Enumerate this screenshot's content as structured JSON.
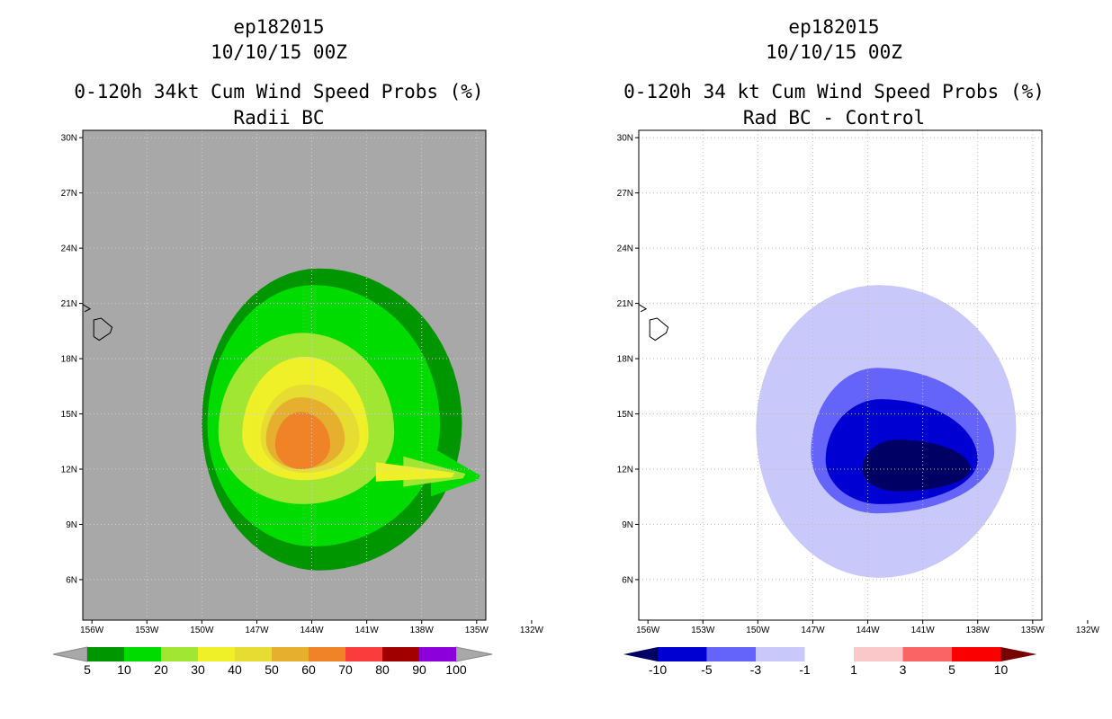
{
  "chart_data": [
    {
      "type": "heatmap",
      "storm_id": "ep182015",
      "date": "10/10/15 00Z",
      "title": "0-120h 34kt Cum Wind Speed Probs (%)",
      "subtitle": "Radii BC",
      "background": "#a8a8a8",
      "lat_ticks": [
        "30N",
        "27N",
        "24N",
        "21N",
        "18N",
        "15N",
        "12N",
        "9N",
        "6N"
      ],
      "lat_values": [
        30,
        27,
        24,
        21,
        18,
        15,
        12,
        9,
        6
      ],
      "lon_ticks": [
        "156W",
        "153W",
        "150W",
        "147W",
        "144W",
        "141W",
        "138W",
        "135W",
        "132W"
      ],
      "lon_values": [
        156,
        153,
        150,
        147,
        144,
        141,
        138,
        135,
        132
      ],
      "xlim_lon_w": [
        156.5,
        134.5
      ],
      "ylim_lat_n": [
        3.8,
        30.4
      ],
      "colorbar_labels": [
        "5",
        "10",
        "20",
        "30",
        "40",
        "50",
        "60",
        "70",
        "80",
        "90",
        "100"
      ],
      "colorbar_colors": [
        "#009600",
        "#00dc00",
        "#a0e632",
        "#f0f028",
        "#e6dc32",
        "#e6af2d",
        "#f08228",
        "#fa3c3c",
        "#a00000",
        "#8c00dc"
      ],
      "levels": [
        {
          "value": "5",
          "color": "#009600",
          "center": [
            143.6,
            14.5
          ],
          "r_w": 6.4,
          "r_e": 7.8,
          "r_n": 8.4,
          "r_s": 8.0
        },
        {
          "value": "10",
          "color": "#00dc00",
          "center": [
            143.9,
            14.4
          ],
          "r_w": 5.8,
          "r_e": 6.9,
          "r_n": 7.6,
          "r_s": 6.6
        },
        {
          "value": "20",
          "color": "#a0e632",
          "center": [
            144.5,
            14.0
          ],
          "r_w": 4.6,
          "r_e": 5.0,
          "r_n": 5.4,
          "r_s": 3.9
        },
        {
          "value": "30",
          "color": "#f0f028",
          "center": [
            144.4,
            13.8
          ],
          "r_w": 3.4,
          "r_e": 3.5,
          "r_n": 4.3,
          "r_s": 2.4
        },
        {
          "value": "40",
          "color": "#e6dc32",
          "center": [
            144.4,
            13.7
          ],
          "r_w": 2.4,
          "r_e": 3.0,
          "r_n": 2.9,
          "r_s": 1.9
        },
        {
          "value": "50",
          "color": "#e6af2d",
          "center": [
            144.6,
            13.6
          ],
          "r_w": 1.9,
          "r_e": 2.4,
          "r_n": 2.3,
          "r_s": 1.6
        },
        {
          "value": "60",
          "color": "#f08228",
          "center": [
            144.6,
            13.3
          ],
          "r_w": 1.4,
          "r_e": 1.6,
          "r_n": 1.8,
          "r_s": 1.3
        }
      ]
    },
    {
      "type": "heatmap",
      "storm_id": "ep182015",
      "date": "10/10/15 00Z",
      "title": "0-120h 34 kt Cum Wind Speed Probs (%)",
      "subtitle": "Rad BC - Control",
      "background": "#ffffff",
      "grid": true,
      "lat_ticks": [
        "30N",
        "27N",
        "24N",
        "21N",
        "18N",
        "15N",
        "12N",
        "9N",
        "6N"
      ],
      "lat_values": [
        30,
        27,
        24,
        21,
        18,
        15,
        12,
        9,
        6
      ],
      "lon_ticks": [
        "156W",
        "153W",
        "150W",
        "147W",
        "144W",
        "141W",
        "138W",
        "135W",
        "132W"
      ],
      "lon_values": [
        156,
        153,
        150,
        147,
        144,
        141,
        138,
        135,
        132
      ],
      "xlim_lon_w": [
        156.5,
        134.5
      ],
      "ylim_lat_n": [
        3.8,
        30.4
      ],
      "colorbar_labels": [
        "-10",
        "-5",
        "-3",
        "-1",
        "1",
        "3",
        "5",
        "10"
      ],
      "colorbar_colors": [
        "#0000d2",
        "#6464fa",
        "#c8c8fa",
        "#ffffff",
        "#fac8c8",
        "#fa6464",
        "#fa0000"
      ],
      "levels": [
        {
          "value": "-1 to -3",
          "color": "#c8c8fa",
          "center": [
            143.4,
            14.2
          ],
          "r_w": 6.7,
          "r_e": 7.5,
          "r_n": 7.8,
          "r_s": 8.1
        },
        {
          "value": "-3 to -5",
          "color": "#6464fa",
          "center": [
            143.5,
            12.9
          ],
          "r_w": 3.6,
          "r_e": 6.4,
          "r_n": 4.6,
          "r_s": 3.3
        },
        {
          "value": "-5 to -10",
          "color": "#0000d2",
          "center": [
            143.3,
            12.5
          ],
          "r_w": 3.0,
          "r_e": 5.3,
          "r_n": 3.3,
          "r_s": 2.4
        },
        {
          "value": "< -10",
          "color": "#000064",
          "center": [
            142.4,
            12.0
          ],
          "r_w": 1.9,
          "r_e": 4.0,
          "r_n": 1.6,
          "r_s": 1.2
        }
      ]
    }
  ]
}
